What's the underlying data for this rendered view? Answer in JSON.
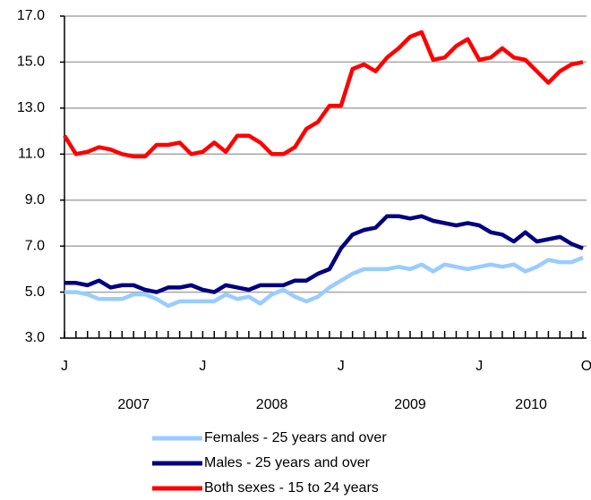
{
  "chart_data": {
    "type": "line",
    "categories": [
      "J",
      null,
      null,
      null,
      null,
      null,
      null,
      null,
      null,
      null,
      null,
      null,
      "J",
      null,
      null,
      null,
      null,
      null,
      null,
      null,
      null,
      null,
      null,
      null,
      "J",
      null,
      null,
      null,
      null,
      null,
      null,
      null,
      null,
      null,
      null,
      null,
      "J",
      null,
      null,
      null,
      null,
      null,
      null,
      null,
      null,
      "O"
    ],
    "year_labels": [
      "2007",
      "2008",
      "2009",
      "2010"
    ],
    "ylim": [
      3,
      17
    ],
    "yticks": [
      {
        "value": 3,
        "label": "3.0"
      },
      {
        "value": 5,
        "label": "5.0"
      },
      {
        "value": 7,
        "label": "7.0"
      },
      {
        "value": 9,
        "label": "9.0"
      },
      {
        "value": 11,
        "label": "11.0"
      },
      {
        "value": 13,
        "label": "13.0"
      },
      {
        "value": 15,
        "label": "15.0"
      },
      {
        "value": 17,
        "label": "17.0"
      }
    ],
    "grid": true,
    "series": [
      {
        "name": "Females - 25 years and over",
        "color": "#99ccff",
        "values": [
          5.0,
          5.0,
          4.9,
          4.7,
          4.7,
          4.7,
          4.9,
          4.9,
          4.7,
          4.4,
          4.6,
          4.6,
          4.6,
          4.6,
          4.9,
          4.7,
          4.8,
          4.5,
          4.9,
          5.1,
          4.8,
          4.6,
          4.8,
          5.2,
          5.5,
          5.8,
          6.0,
          6.0,
          6.0,
          6.1,
          6.0,
          6.2,
          5.9,
          6.2,
          6.1,
          6.0,
          6.1,
          6.2,
          6.1,
          6.2,
          5.9,
          6.1,
          6.4,
          6.3,
          6.3,
          6.5
        ]
      },
      {
        "name": "Males - 25 years and over",
        "color": "#000080",
        "values": [
          5.4,
          5.4,
          5.3,
          5.5,
          5.2,
          5.3,
          5.3,
          5.1,
          5.0,
          5.2,
          5.2,
          5.3,
          5.1,
          5.0,
          5.3,
          5.2,
          5.1,
          5.3,
          5.3,
          5.3,
          5.5,
          5.5,
          5.8,
          6.0,
          6.9,
          7.5,
          7.7,
          7.8,
          8.3,
          8.3,
          8.2,
          8.3,
          8.1,
          8.0,
          7.9,
          8.0,
          7.9,
          7.6,
          7.5,
          7.2,
          7.6,
          7.2,
          7.3,
          7.4,
          7.1,
          6.9
        ]
      },
      {
        "name": "Both sexes - 15 to 24 years",
        "color": "#ff0000",
        "values": [
          11.8,
          11.0,
          11.1,
          11.3,
          11.2,
          11.0,
          10.9,
          10.9,
          11.4,
          11.4,
          11.5,
          11.0,
          11.1,
          11.5,
          11.1,
          11.8,
          11.8,
          11.5,
          11.0,
          11.0,
          11.3,
          12.1,
          12.4,
          13.1,
          13.1,
          14.7,
          14.9,
          14.6,
          15.2,
          15.6,
          16.1,
          16.3,
          15.1,
          15.2,
          15.7,
          16.0,
          15.1,
          15.2,
          15.6,
          15.2,
          15.1,
          14.6,
          14.1,
          14.6,
          14.9,
          15.0
        ]
      }
    ]
  }
}
